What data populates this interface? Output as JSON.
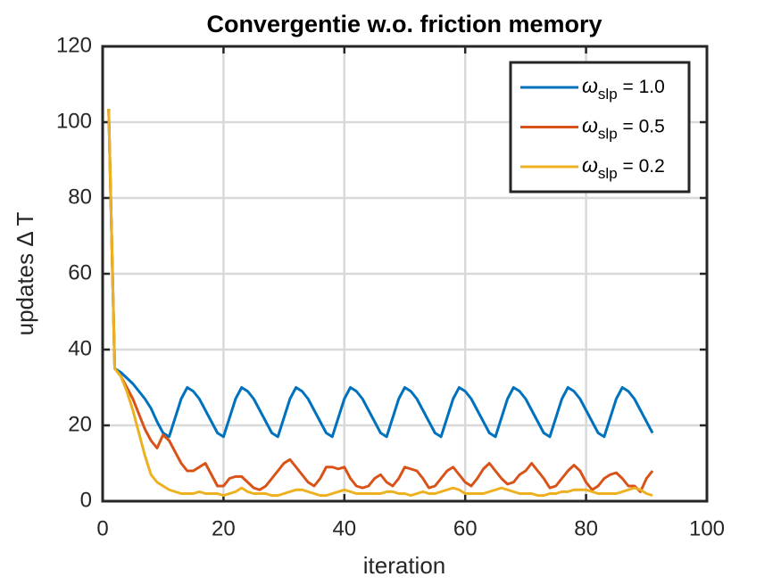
{
  "chart_data": {
    "type": "line",
    "title": "Convergentie w.o. friction memory",
    "xlabel": "iteration",
    "ylabel": "updates Δ T",
    "x": [
      1,
      2,
      3,
      4,
      5,
      6,
      7,
      8,
      9,
      10,
      11,
      12,
      13,
      14,
      15,
      16,
      17,
      18,
      19,
      20,
      21,
      22,
      23,
      24,
      25,
      26,
      27,
      28,
      29,
      30,
      31,
      32,
      33,
      34,
      35,
      36,
      37,
      38,
      39,
      40,
      41,
      42,
      43,
      44,
      45,
      46,
      47,
      48,
      49,
      50,
      51,
      52,
      53,
      54,
      55,
      56,
      57,
      58,
      59,
      60,
      61,
      62,
      63,
      64,
      65,
      66,
      67,
      68,
      69,
      70,
      71,
      72,
      73,
      74,
      75,
      76,
      77,
      78,
      79,
      80,
      81,
      82,
      83,
      84,
      85,
      86,
      87,
      88,
      89,
      90,
      91
    ],
    "series": [
      {
        "name": "ωslp = 1.0",
        "color": "#0072BD",
        "values": [
          103.5,
          35,
          34,
          32.5,
          31,
          29,
          27,
          24.5,
          21,
          18,
          17,
          22,
          27,
          30,
          29,
          27,
          24,
          21,
          18,
          17,
          22,
          27,
          30,
          29,
          27,
          24,
          21,
          18,
          17,
          22,
          27,
          30,
          29,
          27,
          24,
          21,
          18,
          17,
          22,
          27,
          30,
          29,
          27,
          24,
          21,
          18,
          17,
          22,
          27,
          30,
          29,
          27,
          24,
          21,
          18,
          17,
          22,
          27,
          30,
          29,
          27,
          24,
          21,
          18,
          17,
          22,
          27,
          30,
          29,
          27,
          24,
          21,
          18,
          17,
          22,
          27,
          30,
          29,
          27,
          24,
          21,
          18,
          17,
          22,
          27,
          30,
          29,
          27,
          24,
          21,
          18
        ]
      },
      {
        "name": "ωslp = 0.5",
        "color": "#D95319",
        "values": [
          103.5,
          35,
          33,
          30,
          27,
          23,
          19,
          16,
          14,
          17.5,
          16,
          13,
          10,
          8,
          8,
          9,
          10,
          7,
          4,
          4,
          6,
          6.5,
          6.5,
          5,
          3.5,
          3,
          4,
          6,
          8,
          10,
          11,
          9,
          7,
          5,
          4,
          6,
          9,
          9,
          8.5,
          9,
          6,
          4,
          3.5,
          4,
          6,
          7,
          5,
          4,
          6,
          9,
          8.5,
          8,
          6,
          3.5,
          4,
          6,
          8,
          9,
          7,
          5,
          4,
          6,
          8.5,
          10,
          8,
          6,
          4.5,
          5,
          7,
          8,
          10,
          8,
          6,
          3.5,
          4,
          6,
          8,
          9.5,
          8,
          5,
          3,
          4,
          6,
          7,
          7.5,
          6,
          4,
          4,
          2.5,
          6,
          8
        ]
      },
      {
        "name": "ωslp = 0.2",
        "color": "#EDB120",
        "values": [
          103.5,
          35,
          33,
          29,
          24,
          18,
          12,
          7,
          5,
          4,
          3,
          2.5,
          2,
          2,
          2,
          2.5,
          2,
          2,
          2,
          1.5,
          2,
          2.5,
          3.5,
          2.5,
          2,
          2,
          2,
          1.5,
          1.5,
          2,
          2.5,
          3,
          3,
          2.5,
          2,
          1.5,
          1.5,
          2,
          2.5,
          3,
          2.5,
          2,
          2,
          2,
          2,
          2,
          2.5,
          2.5,
          2,
          2,
          1.5,
          2,
          2.5,
          2,
          2,
          2.5,
          3,
          3.5,
          3,
          2,
          2,
          2,
          2,
          2.5,
          3,
          3.5,
          3,
          2.5,
          2,
          2,
          2,
          1.5,
          1.5,
          2,
          2,
          2.5,
          2.5,
          3,
          3,
          3,
          2.5,
          2,
          2,
          2,
          2,
          2.5,
          3,
          3.5,
          3,
          2,
          1.5
        ]
      }
    ],
    "xlim": [
      0,
      100
    ],
    "xticks": [
      0,
      20,
      40,
      60,
      80,
      100
    ],
    "ylim": [
      0,
      120
    ],
    "yticks": [
      0,
      20,
      40,
      60,
      80,
      100,
      120
    ],
    "grid": true,
    "legend": "northeast"
  }
}
